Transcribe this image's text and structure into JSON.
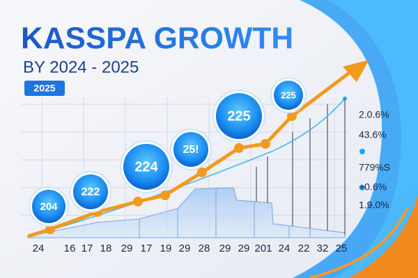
{
  "header": {
    "title": "KASSPA GROWTH",
    "subtitle": "BY 2024 - 2025",
    "badge": "2025"
  },
  "bubbles": [
    "204",
    "222",
    "224",
    "25!",
    "225",
    "225"
  ],
  "x_labels": [
    "24",
    "16",
    "17",
    "18",
    "29",
    "17",
    "19",
    "29",
    "28",
    "29",
    "29",
    "201",
    "24",
    "22",
    "32",
    "25"
  ],
  "right_labels": [
    "2.0.6%",
    "43.6%",
    "779%S",
    "+0.6%",
    "1.9.0%"
  ]
}
